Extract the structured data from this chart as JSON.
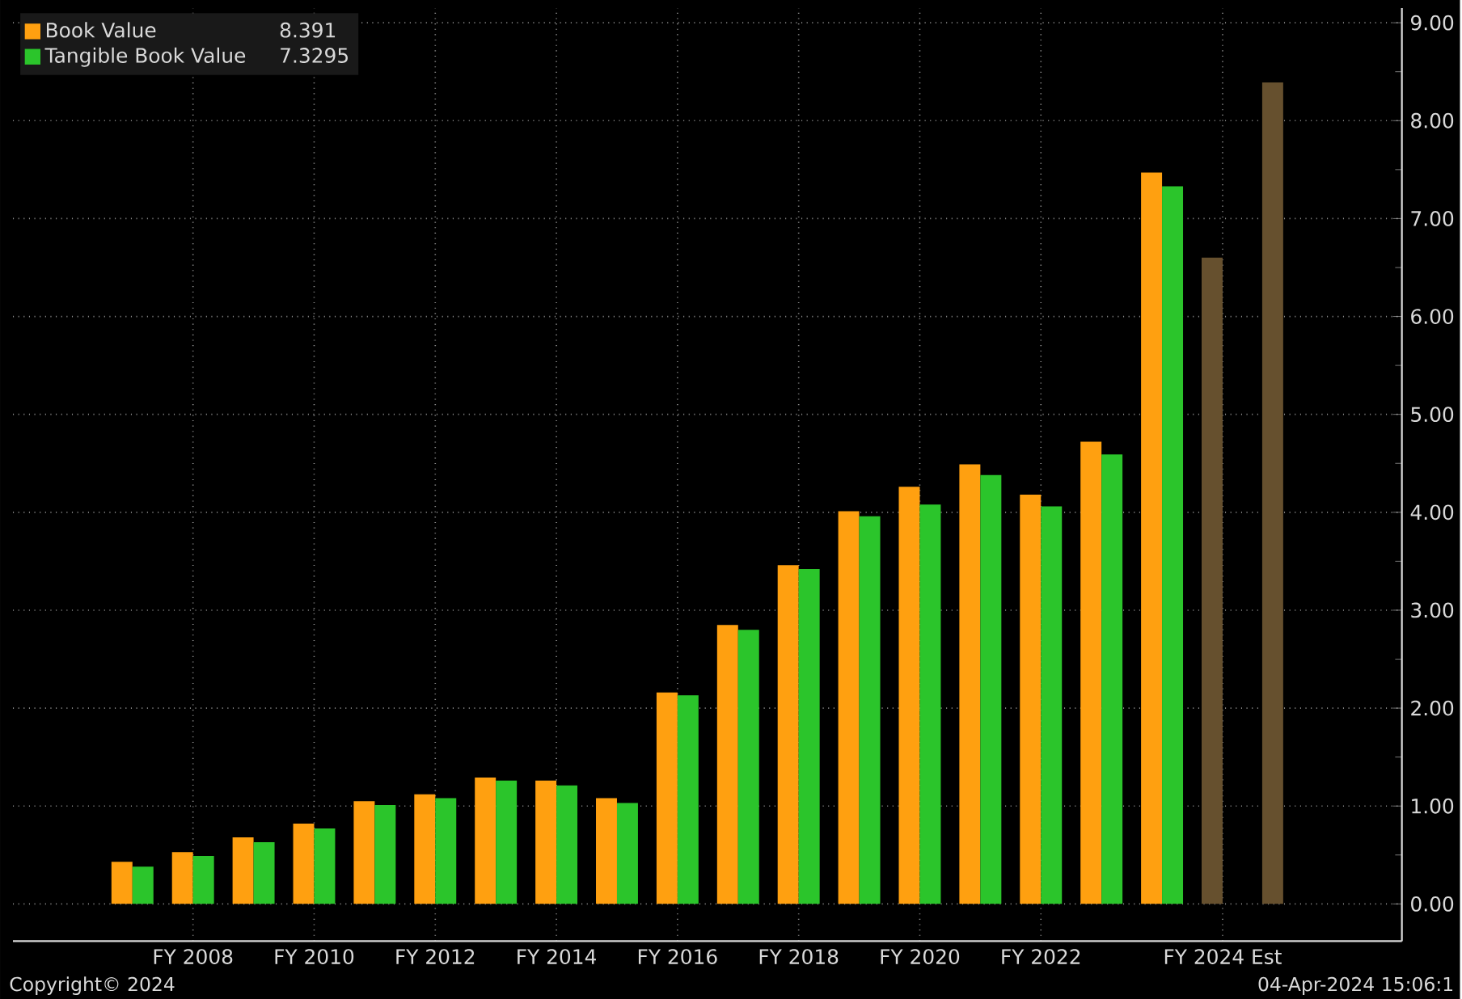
{
  "chart_data": {
    "type": "bar",
    "categories": [
      null,
      "FY 2008",
      null,
      "FY 2010",
      null,
      "FY 2012",
      null,
      "FY 2014",
      null,
      "FY 2016",
      null,
      "FY 2018",
      null,
      "FY 2020",
      null,
      "FY 2022",
      null,
      null,
      "FY 2024 Est",
      null
    ],
    "series": [
      {
        "name": "Book Value",
        "color": "#ffa010",
        "colors": [
          "#ffa010",
          "#ffa010",
          "#ffa010",
          "#ffa010",
          "#ffa010",
          "#ffa010",
          "#ffa010",
          "#ffa010",
          "#ffa010",
          "#ffa010",
          "#ffa010",
          "#ffa010",
          "#ffa010",
          "#ffa010",
          "#ffa010",
          "#ffa010",
          "#ffa010",
          "#ffa010",
          "#66502e",
          "#66502e"
        ],
        "values": [
          0.43,
          0.53,
          0.68,
          0.82,
          1.05,
          1.12,
          1.29,
          1.26,
          1.08,
          2.16,
          2.85,
          3.46,
          4.01,
          4.26,
          4.49,
          4.18,
          4.72,
          7.47,
          6.6,
          8.391
        ]
      },
      {
        "name": "Tangible Book Value",
        "color": "#2bc52b",
        "values": [
          0.38,
          0.49,
          0.63,
          0.77,
          1.01,
          1.08,
          1.26,
          1.21,
          1.03,
          2.13,
          2.8,
          3.42,
          3.96,
          4.08,
          4.38,
          4.06,
          4.59,
          7.3295,
          null,
          null
        ]
      }
    ],
    "ylim": [
      -0.38,
      9.15
    ],
    "yticks": [
      {
        "value": 0,
        "label": "0.00"
      },
      {
        "value": 1,
        "label": "1.00"
      },
      {
        "value": 2,
        "label": "2.00"
      },
      {
        "value": 3,
        "label": "3.00"
      },
      {
        "value": 4,
        "label": "4.00"
      },
      {
        "value": 5,
        "label": "5.00"
      },
      {
        "value": 6,
        "label": "6.00"
      },
      {
        "value": 7,
        "label": "7.00"
      },
      {
        "value": 8,
        "label": "8.00"
      },
      {
        "value": 9,
        "label": "9.00"
      }
    ],
    "grid": true,
    "legend": "top left",
    "annotations": [
      "8.391",
      "7.3295",
      "Copyright© 2024",
      "04-Apr-2024 15:06:1"
    ]
  }
}
